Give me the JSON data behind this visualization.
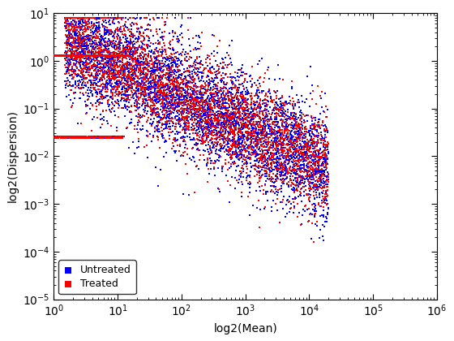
{
  "title": "",
  "xlabel": "log2(Mean)",
  "ylabel": "log2(Dispersion)",
  "xlim_log": [
    1.0,
    1000000.0
  ],
  "ylim_log": [
    1e-05,
    10.0
  ],
  "legend_labels": [
    "Treated",
    "Untreated"
  ],
  "colors": [
    "red",
    "blue"
  ],
  "marker": "s",
  "marker_size": 3,
  "background_color": "#ffffff",
  "seed": 42,
  "xticks": [
    1,
    10,
    100,
    1000,
    10000,
    100000,
    1000000
  ],
  "yticks": [
    1e-05,
    0.0001,
    0.001,
    0.01,
    0.1,
    1,
    10
  ]
}
